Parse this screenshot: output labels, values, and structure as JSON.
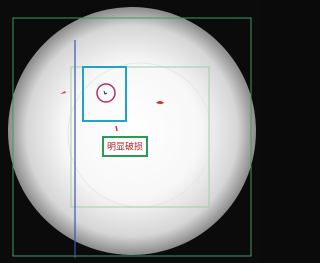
{
  "annotation": {
    "label": "明显破损"
  }
}
